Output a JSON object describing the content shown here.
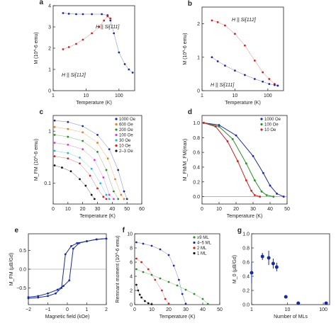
{
  "chart_data": [
    {
      "id": "a",
      "panel_label": "a",
      "type": "scatter",
      "xlabel": "Temperature (K)",
      "ylabel": "M (10^-6 emu)",
      "xscale": "log",
      "xlim": [
        1,
        300
      ],
      "ylim": [
        0,
        4
      ],
      "xticks": [
        1,
        10,
        100
      ],
      "xtick_labels": [
        "1",
        "10",
        "100"
      ],
      "yticks": [
        0,
        1,
        2,
        3,
        4
      ],
      "ytick_labels": [
        "0",
        "1",
        "2",
        "3",
        "4"
      ],
      "annotations": [
        "H || Si[111]",
        "H || Si[112]"
      ],
      "series": [
        {
          "color": "#1a2a9a",
          "x": [
            2,
            3,
            5,
            8,
            15,
            30,
            45,
            55,
            70,
            100,
            150,
            200,
            260
          ],
          "y": [
            3.65,
            3.62,
            3.6,
            3.6,
            3.6,
            3.6,
            3.55,
            3.3,
            2.7,
            1.8,
            1.25,
            1.0,
            0.85
          ]
        },
        {
          "color": "#cc2222",
          "x": [
            2,
            3,
            5,
            8,
            15,
            25,
            35,
            45,
            55
          ],
          "y": [
            1.95,
            2.05,
            2.2,
            2.4,
            2.7,
            3.0,
            3.3,
            3.5,
            3.4
          ]
        }
      ]
    },
    {
      "id": "b",
      "panel_label": "b",
      "type": "scatter",
      "xlabel": "Temperature (K)",
      "ylabel": "M (10^-6 emu)",
      "xscale": "log",
      "xlim": [
        1,
        300
      ],
      "ylim": [
        0,
        2.5
      ],
      "xticks": [
        1,
        10,
        100
      ],
      "xtick_labels": [
        "1",
        "10",
        "100"
      ],
      "yticks": [
        0,
        1,
        2
      ],
      "ytick_labels": [
        "0",
        "1",
        "2"
      ],
      "annotations": [
        "H || Si[112]",
        "H || Si[111]"
      ],
      "series": [
        {
          "color": "#cc2222",
          "x": [
            2,
            3,
            5,
            10,
            20,
            40,
            70,
            110,
            160,
            200
          ],
          "y": [
            2.1,
            2.05,
            1.95,
            1.7,
            1.35,
            0.9,
            0.55,
            0.35,
            0.2,
            0.15
          ]
        },
        {
          "color": "#1a2a9a",
          "x": [
            2,
            3,
            5,
            10,
            20,
            40,
            70,
            110,
            160,
            200
          ],
          "y": [
            1.0,
            0.88,
            0.75,
            0.6,
            0.47,
            0.35,
            0.27,
            0.2,
            0.17,
            0.15
          ]
        }
      ]
    },
    {
      "id": "c",
      "panel_label": "c",
      "type": "scatter",
      "xlabel": "Temperature (K)",
      "ylabel": "M_FM (10^-6 emu)",
      "yscale": "log",
      "xlim": [
        0,
        60
      ],
      "ylim": [
        0.04,
        2
      ],
      "xticks": [
        0,
        10,
        20,
        30,
        40,
        50,
        60
      ],
      "xtick_labels": [
        "0",
        "10",
        "20",
        "30",
        "40",
        "50",
        "60"
      ],
      "yticks": [
        0.1,
        1
      ],
      "ytick_labels": [
        "0.1",
        "1"
      ],
      "legend": "top-right",
      "series": [
        {
          "name": "1000 Oe",
          "color": "#1a2a9a",
          "x": [
            1,
            10,
            20,
            30,
            38,
            44,
            48,
            50
          ],
          "y": [
            1.6,
            1.5,
            1.25,
            0.85,
            0.45,
            0.18,
            0.07,
            0.05
          ]
        },
        {
          "name": "600 Oe",
          "color": "#e67e22",
          "x": [
            1,
            10,
            20,
            30,
            37,
            42,
            46,
            48
          ],
          "y": [
            1.2,
            1.1,
            0.95,
            0.6,
            0.3,
            0.12,
            0.06,
            0.05
          ]
        },
        {
          "name": "200 Oe",
          "color": "#2e8b2e",
          "x": [
            1,
            10,
            20,
            30,
            36,
            41,
            44
          ],
          "y": [
            0.85,
            0.78,
            0.65,
            0.4,
            0.18,
            0.07,
            0.05
          ]
        },
        {
          "name": "100 Oe",
          "color": "#d63ad0",
          "x": [
            1,
            10,
            20,
            28,
            34,
            38,
            41
          ],
          "y": [
            0.6,
            0.55,
            0.45,
            0.28,
            0.13,
            0.06,
            0.05
          ]
        },
        {
          "name": "30 Oe",
          "color": "#2bb0e0",
          "x": [
            1,
            10,
            18,
            26,
            32,
            36,
            38
          ],
          "y": [
            0.42,
            0.38,
            0.31,
            0.19,
            0.1,
            0.06,
            0.05
          ]
        },
        {
          "name": "10 Oe",
          "color": "#cc2222",
          "x": [
            1,
            10,
            18,
            25,
            30,
            34,
            36
          ],
          "y": [
            0.33,
            0.3,
            0.24,
            0.14,
            0.08,
            0.055,
            0.05
          ]
        },
        {
          "name": "2–3 Oe",
          "color": "#111111",
          "x": [
            1,
            6,
            12,
            18,
            22,
            26,
            28
          ],
          "y": [
            0.22,
            0.2,
            0.17,
            0.12,
            0.09,
            0.06,
            0.05
          ]
        }
      ]
    },
    {
      "id": "d",
      "panel_label": "d",
      "type": "line",
      "xlabel": "Temperature (K)",
      "ylabel": "M_FM/M_FM(max)",
      "xlim": [
        0,
        50
      ],
      "ylim": [
        -0.1,
        1.1
      ],
      "xticks": [
        0,
        10,
        20,
        30,
        40,
        50
      ],
      "xtick_labels": [
        "0",
        "10",
        "20",
        "30",
        "40",
        "50"
      ],
      "yticks": [
        0,
        0.2,
        0.4,
        0.6,
        0.8,
        1.0
      ],
      "ytick_labels": [
        "0.0",
        "0.2",
        "0.4",
        "0.6",
        "0.8",
        "1.0"
      ],
      "legend": "top-right",
      "series": [
        {
          "name": "1000 Oe",
          "color": "#1a2a9a",
          "x": [
            1,
            10,
            20,
            30,
            36,
            40,
            44,
            48
          ],
          "y": [
            1.0,
            0.97,
            0.83,
            0.55,
            0.32,
            0.15,
            0.04,
            0.0
          ]
        },
        {
          "name": "100 Oe",
          "color": "#2e8b2e",
          "x": [
            1,
            10,
            18,
            26,
            31,
            35,
            38,
            42
          ],
          "y": [
            1.0,
            0.95,
            0.78,
            0.45,
            0.22,
            0.07,
            0.02,
            0.0
          ]
        },
        {
          "name": "10 Oe",
          "color": "#cc2222",
          "x": [
            1,
            8,
            15,
            21,
            26,
            29,
            31,
            34
          ],
          "y": [
            1.0,
            0.95,
            0.75,
            0.48,
            0.22,
            0.08,
            0.02,
            0.0
          ]
        }
      ]
    },
    {
      "id": "e",
      "panel_label": "e",
      "type": "line",
      "xlabel": "Magnetic field (kOe)",
      "ylabel": "M_FM (μB/Gd)",
      "xlim": [
        -2,
        2
      ],
      "ylim": [
        -0.95,
        0.95
      ],
      "xticks": [
        -2,
        -1,
        0,
        1,
        2
      ],
      "xtick_labels": [
        "−2",
        "−1",
        "0",
        "1",
        "2"
      ],
      "yticks": [
        -0.5,
        0,
        0.5
      ],
      "ytick_labels": [
        "−0.5",
        "0.0",
        "0.5"
      ],
      "series": [
        {
          "color": "#1a2a9a",
          "x": [
            -2,
            -1.5,
            -1,
            -0.5,
            -0.2,
            0.1,
            0.3,
            0.6,
            1,
            1.5,
            2
          ],
          "y": [
            -0.75,
            -0.72,
            -0.65,
            -0.55,
            -0.45,
            -0.3,
            0.55,
            0.7,
            0.75,
            0.8,
            0.82
          ]
        },
        {
          "color": "#1a2a9a",
          "x": [
            2,
            1.5,
            1,
            0.5,
            0.2,
            -0.1,
            -0.3,
            -0.6,
            -1,
            -1.5,
            -2
          ],
          "y": [
            0.82,
            0.8,
            0.75,
            0.7,
            0.62,
            0.4,
            -0.5,
            -0.65,
            -0.72,
            -0.76,
            -0.78
          ]
        }
      ]
    },
    {
      "id": "f",
      "panel_label": "f",
      "type": "scatter",
      "xlabel": "Temperature (K)",
      "ylabel": "Remnant moment (10^-6 emu)",
      "xlim": [
        0,
        50
      ],
      "ylim": [
        0,
        10
      ],
      "xticks": [
        0,
        10,
        20,
        30,
        40,
        50
      ],
      "xtick_labels": [
        "0",
        "10",
        "20",
        "30",
        "40",
        "50"
      ],
      "yticks": [
        0,
        2,
        4,
        6,
        8,
        10
      ],
      "ytick_labels": [
        "0",
        "2",
        "4",
        "6",
        "8",
        "10"
      ],
      "legend": "top-right",
      "series": [
        {
          "name": "≥9 ML",
          "color": "#2e8b2e",
          "x": [
            1,
            5,
            10,
            15,
            20,
            25,
            30,
            35,
            40,
            43
          ],
          "y": [
            5.0,
            4.6,
            4.2,
            3.7,
            3.2,
            2.7,
            2.1,
            1.5,
            0.8,
            0.1
          ]
        },
        {
          "name": "4–5 ML",
          "color": "#1a2a9a",
          "x": [
            1,
            5,
            10,
            15,
            20,
            23,
            26,
            28,
            30
          ],
          "y": [
            8.8,
            8.6,
            8.3,
            7.8,
            7.0,
            5.5,
            3.5,
            1.5,
            0.1
          ]
        },
        {
          "name": "2 ML",
          "color": "#cc2222",
          "x": [
            1,
            4,
            8,
            12,
            16,
            18,
            20
          ],
          "y": [
            6.5,
            6.0,
            5.0,
            3.5,
            2.0,
            0.8,
            0.1
          ]
        },
        {
          "name": "1 ML",
          "color": "#111111",
          "x": [
            1,
            2,
            3,
            4,
            6,
            8,
            10
          ],
          "y": [
            2.8,
            2.0,
            1.4,
            1.0,
            0.5,
            0.2,
            0.05
          ]
        }
      ]
    },
    {
      "id": "g",
      "panel_label": "g",
      "type": "scatter",
      "xlabel": "Number of MLs",
      "ylabel": "M_0 (μB/Gd)",
      "xscale": "log",
      "xlim": [
        1,
        150
      ],
      "ylim": [
        0,
        1
      ],
      "xticks": [
        1,
        10,
        100
      ],
      "xtick_labels": [
        "1",
        "10",
        "100"
      ],
      "yticks": [
        0,
        0.2,
        0.4,
        0.6,
        0.8,
        1.0
      ],
      "ytick_labels": [
        "0.0",
        "0.2",
        "0.4",
        "0.6",
        "0.8",
        "1.0"
      ],
      "series": [
        {
          "color": "#1a2a9a",
          "x": [
            1,
            2,
            3,
            4,
            5,
            9,
            20,
            120
          ],
          "y": [
            0.45,
            0.68,
            0.66,
            0.58,
            0.53,
            0.11,
            0.02,
            0.02
          ],
          "err": [
            0.15,
            0.05,
            0.1,
            0.07,
            0.06,
            0.02,
            0.01,
            0.01
          ]
        }
      ]
    }
  ]
}
